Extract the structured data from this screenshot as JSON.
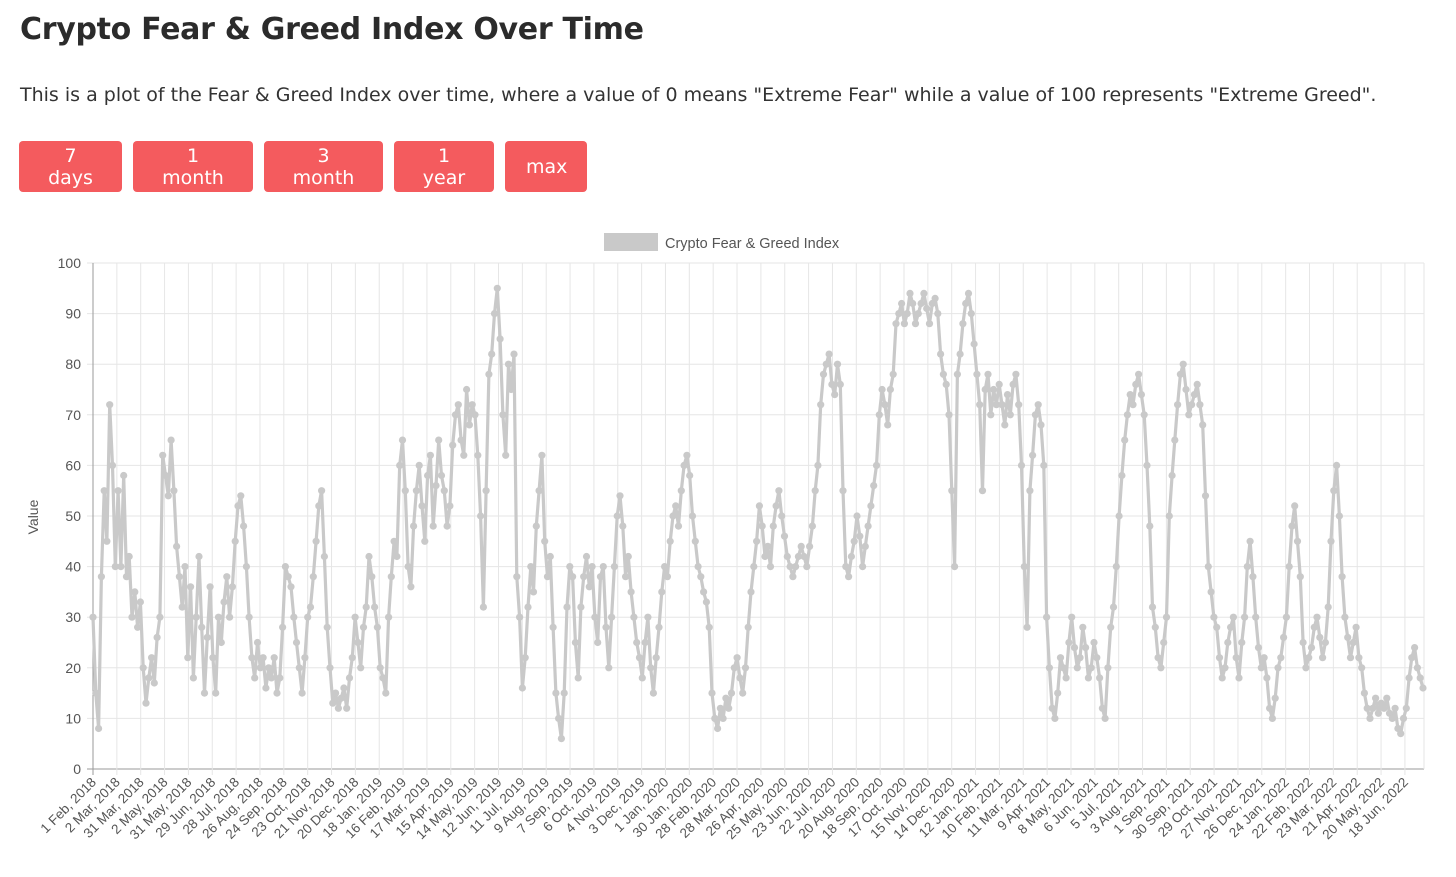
{
  "page": {
    "title": "Crypto Fear & Greed Index Over Time",
    "description": "This is a plot of the Fear & Greed Index over time, where a value of 0 means \"Extreme Fear\" while a value of 100 represents \"Extreme Greed\"."
  },
  "range_buttons": [
    "7 days",
    "1 month",
    "3 month",
    "1 year",
    "max"
  ],
  "colors": {
    "button_bg": "#f45b5e",
    "button_text": "#ffffff",
    "series": "#c9c9c9",
    "grid": "#e6e6e6",
    "axis": "#9a9a9a"
  },
  "chart_data": {
    "type": "line",
    "legend": [
      "Crypto Fear & Greed Index"
    ],
    "legend_position": "top-center",
    "ylabel": "Value",
    "xlabel": "",
    "ylim": [
      0,
      100
    ],
    "yticks": [
      0,
      10,
      20,
      30,
      40,
      50,
      60,
      70,
      80,
      90,
      100
    ],
    "grid": true,
    "x_tick_labels": [
      "1 Feb, 2018",
      "2 Mar, 2018",
      "31 Mar, 2018",
      "2 May, 2018",
      "31 May, 2018",
      "29 Jun, 2018",
      "28 Jul, 2018",
      "26 Aug, 2018",
      "24 Sep, 2018",
      "23 Oct, 2018",
      "21 Nov, 2018",
      "20 Dec, 2018",
      "18 Jan, 2019",
      "16 Feb, 2019",
      "17 Mar, 2019",
      "15 Apr, 2019",
      "14 May, 2019",
      "12 Jun, 2019",
      "11 Jul, 2019",
      "9 Aug, 2019",
      "7 Sep, 2019",
      "6 Oct, 2019",
      "4 Nov, 2019",
      "3 Dec, 2019",
      "1 Jan, 2020",
      "30 Jan, 2020",
      "28 Feb, 2020",
      "28 Mar, 2020",
      "26 Apr, 2020",
      "25 May, 2020",
      "23 Jun, 2020",
      "22 Jul, 2020",
      "20 Aug, 2020",
      "18 Sep, 2020",
      "17 Oct, 2020",
      "15 Nov, 2020",
      "14 Dec, 2020",
      "12 Jan, 2021",
      "10 Feb, 2021",
      "11 Mar, 2021",
      "9 Apr, 2021",
      "8 May, 2021",
      "6 Jun, 2021",
      "5 Jul, 2021",
      "3 Aug, 2021",
      "1 Sep, 2021",
      "30 Sep, 2021",
      "29 Oct, 2021",
      "27 Nov, 2021",
      "26 Dec, 2021",
      "24 Jan, 2022",
      "22 Feb, 2022",
      "23 Mar, 2022",
      "21 Apr, 2022",
      "20 May, 2022",
      "18 Jun, 2022"
    ],
    "series": [
      {
        "name": "Crypto Fear & Greed Index",
        "values": [
          30,
          15,
          8,
          38,
          55,
          45,
          72,
          60,
          40,
          55,
          40,
          58,
          38,
          42,
          30,
          35,
          28,
          33,
          20,
          13,
          18,
          22,
          17,
          26,
          30,
          62,
          58,
          54,
          65,
          55,
          44,
          38,
          32,
          40,
          22,
          36,
          18,
          30,
          42,
          28,
          15,
          26,
          36,
          22,
          15,
          30,
          25,
          33,
          38,
          30,
          36,
          45,
          52,
          54,
          48,
          40,
          30,
          22,
          18,
          25,
          20,
          22,
          16,
          20,
          18,
          22,
          15,
          18,
          28,
          40,
          38,
          36,
          30,
          25,
          20,
          15,
          22,
          30,
          32,
          38,
          45,
          52,
          55,
          42,
          28,
          20,
          13,
          15,
          12,
          14,
          16,
          12,
          18,
          22,
          30,
          25,
          20,
          28,
          32,
          42,
          38,
          32,
          28,
          20,
          18,
          15,
          30,
          38,
          45,
          42,
          60,
          65,
          55,
          40,
          36,
          48,
          55,
          60,
          52,
          45,
          58,
          62,
          48,
          56,
          65,
          58,
          55,
          48,
          52,
          64,
          70,
          72,
          65,
          62,
          75,
          68,
          72,
          70,
          62,
          50,
          32,
          55,
          78,
          82,
          90,
          95,
          85,
          70,
          62,
          80,
          75,
          82,
          38,
          30,
          16,
          22,
          32,
          40,
          35,
          48,
          55,
          62,
          45,
          38,
          42,
          28,
          15,
          10,
          6,
          15,
          32,
          40,
          38,
          25,
          18,
          32,
          38,
          42,
          36,
          40,
          30,
          25,
          38,
          40,
          28,
          20,
          30,
          40,
          50,
          54,
          48,
          38,
          42,
          35,
          30,
          25,
          22,
          18,
          25,
          30,
          20,
          15,
          22,
          28,
          35,
          40,
          38,
          45,
          50,
          52,
          48,
          55,
          60,
          62,
          58,
          50,
          45,
          40,
          38,
          35,
          33,
          28,
          15,
          10,
          8,
          12,
          10,
          14,
          12,
          15,
          20,
          22,
          18,
          15,
          20,
          28,
          35,
          40,
          45,
          52,
          48,
          42,
          44,
          40,
          48,
          52,
          55,
          50,
          46,
          42,
          40,
          38,
          40,
          42,
          44,
          42,
          40,
          44,
          48,
          55,
          60,
          72,
          78,
          80,
          82,
          76,
          74,
          80,
          76,
          55,
          40,
          38,
          42,
          45,
          50,
          46,
          40,
          44,
          48,
          52,
          56,
          60,
          70,
          75,
          72,
          68,
          75,
          78,
          88,
          90,
          92,
          88,
          90,
          94,
          92,
          88,
          90,
          92,
          94,
          91,
          88,
          92,
          93,
          90,
          82,
          78,
          76,
          70,
          55,
          40,
          78,
          82,
          88,
          92,
          94,
          90,
          84,
          78,
          72,
          55,
          75,
          78,
          70,
          75,
          72,
          76,
          72,
          68,
          74,
          70,
          76,
          78,
          72,
          60,
          40,
          28,
          55,
          62,
          70,
          72,
          68,
          60,
          30,
          20,
          12,
          10,
          15,
          22,
          20,
          18,
          25,
          30,
          24,
          20,
          22,
          28,
          24,
          18,
          20,
          25,
          22,
          18,
          12,
          10,
          20,
          28,
          32,
          40,
          50,
          58,
          65,
          70,
          74,
          72,
          76,
          78,
          74,
          70,
          60,
          48,
          32,
          28,
          22,
          20,
          25,
          30,
          50,
          58,
          65,
          72,
          78,
          80,
          75,
          70,
          72,
          74,
          76,
          72,
          68,
          54,
          40,
          35,
          30,
          28,
          22,
          18,
          20,
          25,
          28,
          30,
          22,
          18,
          25,
          30,
          40,
          45,
          38,
          30,
          24,
          20,
          22,
          18,
          12,
          10,
          14,
          20,
          22,
          26,
          30,
          40,
          48,
          52,
          45,
          38,
          25,
          20,
          22,
          24,
          28,
          30,
          26,
          22,
          25,
          32,
          45,
          55,
          60,
          50,
          38,
          30,
          26,
          22,
          25,
          28,
          22,
          20,
          15,
          12,
          10,
          12,
          14,
          11,
          13,
          12,
          14,
          11,
          10,
          12,
          8,
          7,
          10,
          12,
          18,
          22,
          24,
          20,
          18,
          16
        ]
      }
    ]
  }
}
